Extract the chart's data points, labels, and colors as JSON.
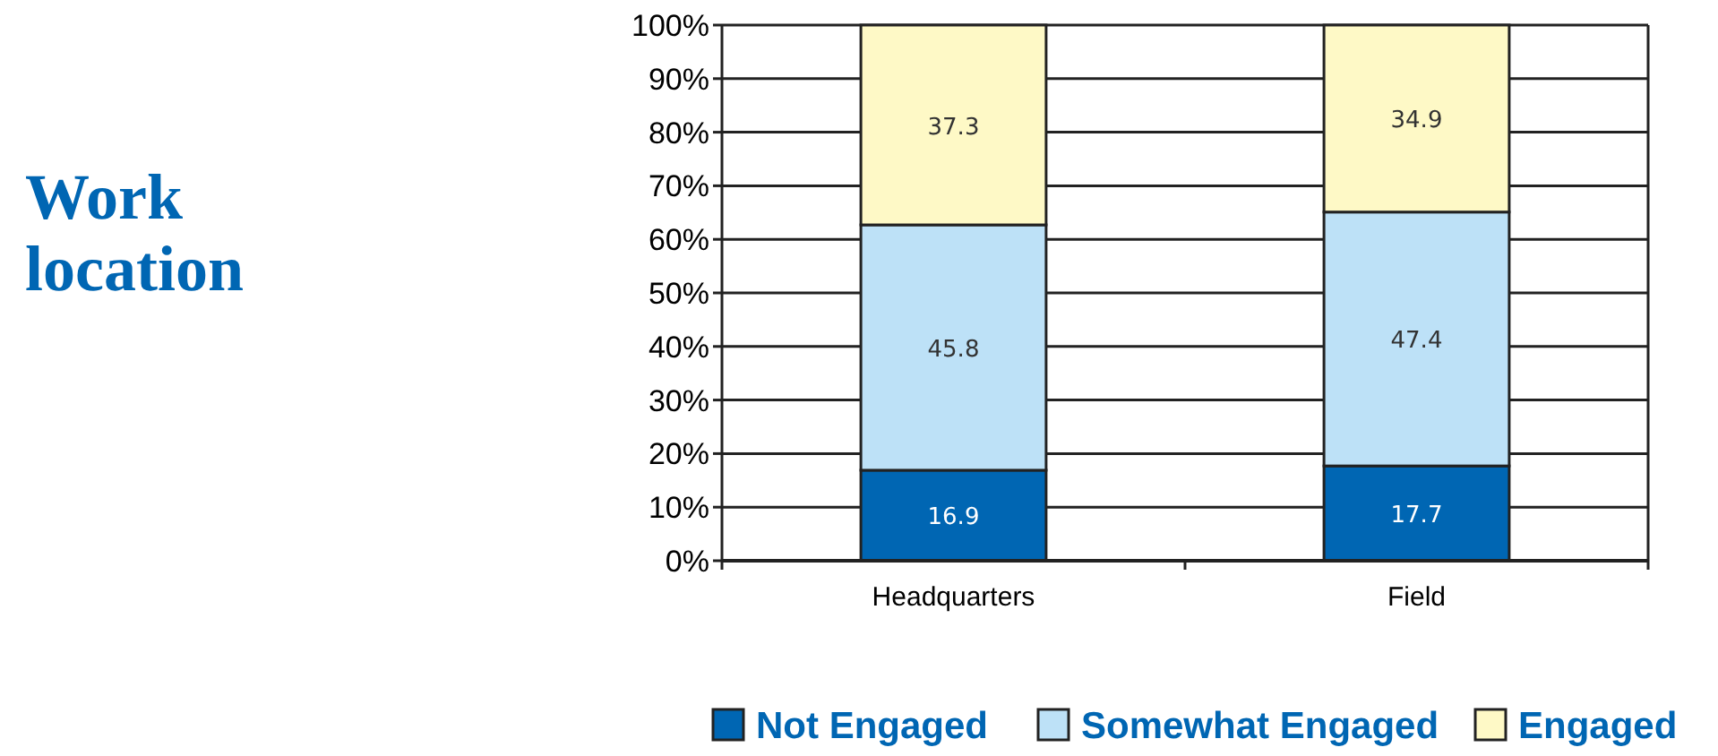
{
  "chart_data": {
    "type": "bar",
    "title": "Work location",
    "stacked": true,
    "categories": [
      "Headquarters",
      "Field"
    ],
    "series": [
      {
        "name": "Not Engaged",
        "color": "#0066b3",
        "values": [
          16.9,
          17.7
        ]
      },
      {
        "name": "Somewhat Engaged",
        "color": "#bde1f7",
        "values": [
          45.8,
          47.4
        ]
      },
      {
        "name": "Engaged",
        "color": "#fef9c6",
        "values": [
          37.3,
          34.9
        ]
      }
    ],
    "ylim": [
      0,
      100
    ],
    "yticks": [
      {
        "value": 0,
        "label": "0%"
      },
      {
        "value": 10,
        "label": "10%"
      },
      {
        "value": 20,
        "label": "20%"
      },
      {
        "value": 30,
        "label": "30%"
      },
      {
        "value": 40,
        "label": "40%"
      },
      {
        "value": 50,
        "label": "50%"
      },
      {
        "value": 60,
        "label": "60%"
      },
      {
        "value": 70,
        "label": "70%"
      },
      {
        "value": 80,
        "label": "80%"
      },
      {
        "value": 90,
        "label": "90%"
      },
      {
        "value": 100,
        "label": "100%"
      }
    ],
    "grid": "y",
    "data_labels": true,
    "legend": "bottom"
  }
}
